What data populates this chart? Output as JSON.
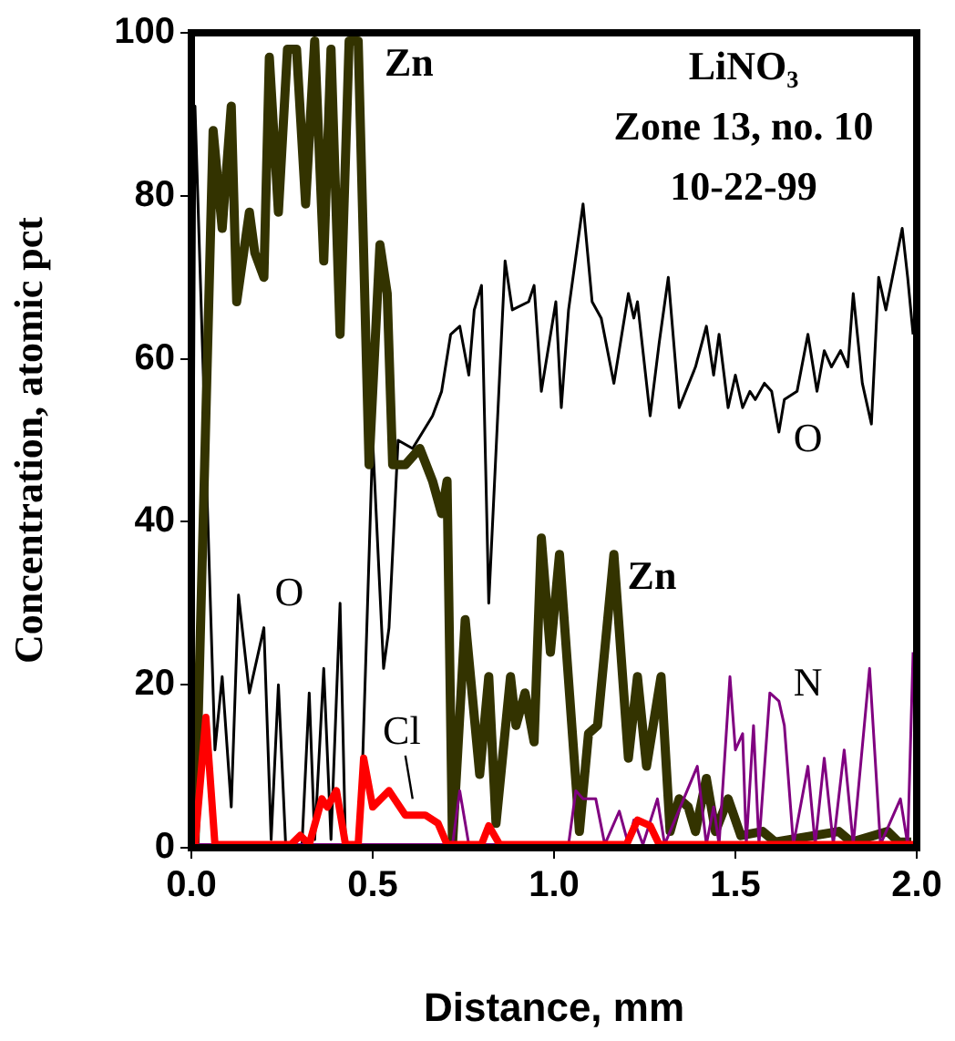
{
  "chart_data": {
    "type": "line",
    "xlabel": "Distance, mm",
    "ylabel": "Concentration, atomic pct",
    "xlim": [
      0,
      2
    ],
    "xticks": [
      {
        "value": 0,
        "label": "0.0"
      },
      {
        "value": 0.5,
        "label": "0.5"
      },
      {
        "value": 1,
        "label": "1.0"
      },
      {
        "value": 1.5,
        "label": "1.5"
      },
      {
        "value": 2,
        "label": "2.0"
      }
    ],
    "ylim": [
      0,
      100
    ],
    "yticks": [
      0,
      20,
      40,
      60,
      80,
      100
    ],
    "grid": false,
    "legend": false,
    "marker": "none",
    "line_style": "solid",
    "series": [
      {
        "name": "Zn",
        "color": "#333300",
        "x": [
          0.01,
          0.06,
          0.085,
          0.11,
          0.125,
          0.16,
          0.175,
          0.2,
          0.215,
          0.24,
          0.265,
          0.29,
          0.315,
          0.34,
          0.365,
          0.385,
          0.41,
          0.435,
          0.46,
          0.49,
          0.52,
          0.54,
          0.555,
          0.59,
          0.63,
          0.665,
          0.69,
          0.705,
          0.72,
          0.755,
          0.795,
          0.82,
          0.84,
          0.88,
          0.895,
          0.92,
          0.945,
          0.965,
          0.99,
          1.015,
          1.07,
          1.095,
          1.12,
          1.165,
          1.205,
          1.23,
          1.255,
          1.295,
          1.32,
          1.345,
          1.37,
          1.39,
          1.42,
          1.445,
          1.48,
          1.515,
          1.575,
          1.61,
          1.785,
          1.82,
          1.92,
          1.95,
          1.985
        ],
        "values": [
          0.4,
          88,
          76,
          91,
          67,
          78,
          73,
          70,
          97,
          78,
          98,
          98,
          79,
          99,
          72,
          98,
          63,
          99,
          99,
          47,
          74,
          68,
          47,
          47,
          49,
          45,
          41,
          45,
          0.4,
          28,
          9,
          21,
          3,
          21,
          15,
          19,
          13,
          38,
          24,
          36,
          2,
          14,
          15,
          36,
          11,
          21,
          10,
          21,
          2,
          6,
          5,
          2,
          8.5,
          2,
          6,
          1.5,
          2,
          0.7,
          2,
          0.7,
          2,
          0.7,
          0.7
        ]
      },
      {
        "name": "O",
        "color": "#000000",
        "x": [
          0,
          0.01,
          0.065,
          0.085,
          0.11,
          0.13,
          0.16,
          0.2,
          0.22,
          0.24,
          0.26,
          0.305,
          0.325,
          0.34,
          0.365,
          0.385,
          0.41,
          0.425,
          0.465,
          0.5,
          0.53,
          0.545,
          0.57,
          0.61,
          0.665,
          0.69,
          0.715,
          0.74,
          0.765,
          0.78,
          0.8,
          0.82,
          0.865,
          0.885,
          0.93,
          0.945,
          0.965,
          1.005,
          1.02,
          1.04,
          1.08,
          1.105,
          1.13,
          1.165,
          1.205,
          1.22,
          1.23,
          1.265,
          1.29,
          1.315,
          1.345,
          1.39,
          1.42,
          1.44,
          1.455,
          1.48,
          1.5,
          1.52,
          1.54,
          1.555,
          1.58,
          1.6,
          1.62,
          1.635,
          1.67,
          1.7,
          1.725,
          1.745,
          1.765,
          1.79,
          1.81,
          1.825,
          1.85,
          1.875,
          1.895,
          1.915,
          1.96,
          1.975,
          1.99
        ],
        "values": [
          0.4,
          91,
          12,
          21,
          5,
          31,
          19,
          27,
          1,
          20,
          0.4,
          0.4,
          19,
          1,
          22,
          1,
          30,
          0.4,
          0.4,
          50,
          22,
          27,
          50,
          49,
          53,
          56,
          63,
          64,
          58,
          66,
          69,
          30,
          72,
          66,
          67,
          69,
          56,
          67,
          54,
          66,
          79,
          67,
          65,
          57,
          68,
          65,
          67,
          53,
          62,
          70,
          54,
          59,
          64,
          58,
          63,
          54,
          58,
          54,
          56,
          55,
          57,
          56,
          51,
          55,
          56,
          63,
          56,
          61,
          59,
          61,
          59,
          68,
          57,
          52,
          70,
          66,
          76,
          70,
          63
        ]
      },
      {
        "name": "Cl",
        "color": "#ff0000",
        "x": [
          0,
          0.01,
          0.04,
          0.065,
          0.275,
          0.3,
          0.325,
          0.36,
          0.375,
          0.4,
          0.425,
          0.46,
          0.475,
          0.5,
          0.545,
          0.59,
          0.645,
          0.68,
          0.705,
          0.8,
          0.82,
          0.85,
          1.2,
          1.23,
          1.265,
          1.29,
          2
        ],
        "values": [
          0.4,
          0.4,
          16,
          0.4,
          0.4,
          1.5,
          0.4,
          6,
          5,
          7,
          0.4,
          0.4,
          11,
          5,
          7,
          4,
          4,
          3,
          0.4,
          0.4,
          2.7,
          0.4,
          0.4,
          3.4,
          2.7,
          0.4,
          0.4
        ]
      },
      {
        "name": "N",
        "color": "#800080",
        "x": [
          0,
          0.72,
          0.74,
          0.765,
          1.04,
          1.06,
          1.08,
          1.115,
          1.14,
          1.18,
          1.205,
          1.22,
          1.245,
          1.285,
          1.305,
          1.395,
          1.42,
          1.44,
          1.455,
          1.485,
          1.5,
          1.52,
          1.53,
          1.55,
          1.565,
          1.595,
          1.62,
          1.635,
          1.66,
          1.7,
          1.72,
          1.745,
          1.77,
          1.8,
          1.825,
          1.87,
          1.9,
          1.955,
          1.975,
          1.99
        ],
        "values": [
          0.4,
          0.4,
          7,
          0.4,
          0.4,
          7,
          6,
          6,
          0.4,
          4.5,
          0.4,
          3.4,
          0.4,
          6,
          0.4,
          10,
          0.4,
          5,
          0.4,
          21,
          12,
          14,
          0.4,
          15,
          0.4,
          19,
          18,
          15,
          0.4,
          10,
          0.4,
          11,
          0.4,
          12,
          0.4,
          22,
          0.4,
          6,
          0.4,
          24
        ]
      }
    ],
    "annotations": [
      "LiNO₃",
      "Zone 13, no. 10",
      "10-22-99"
    ]
  }
}
